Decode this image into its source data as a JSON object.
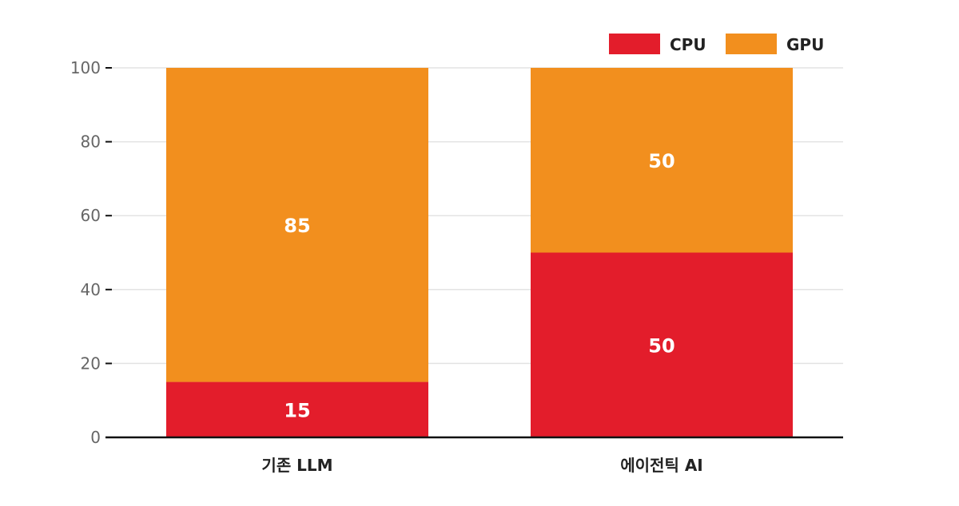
{
  "chart_data": {
    "type": "bar",
    "stacked": true,
    "categories": [
      "기존 LLM",
      "에이전틱 AI"
    ],
    "series": [
      {
        "name": "CPU",
        "values": [
          15,
          50
        ],
        "color": "#e31d2b"
      },
      {
        "name": "GPU",
        "values": [
          85,
          50
        ],
        "color": "#f28f1e"
      }
    ],
    "title": "",
    "xlabel": "",
    "ylabel": "",
    "ylim": [
      0,
      100
    ],
    "yticks": [
      0,
      20,
      40,
      60,
      80,
      100
    ],
    "grid": true,
    "legend_position": "top-right",
    "data_labels": true
  }
}
